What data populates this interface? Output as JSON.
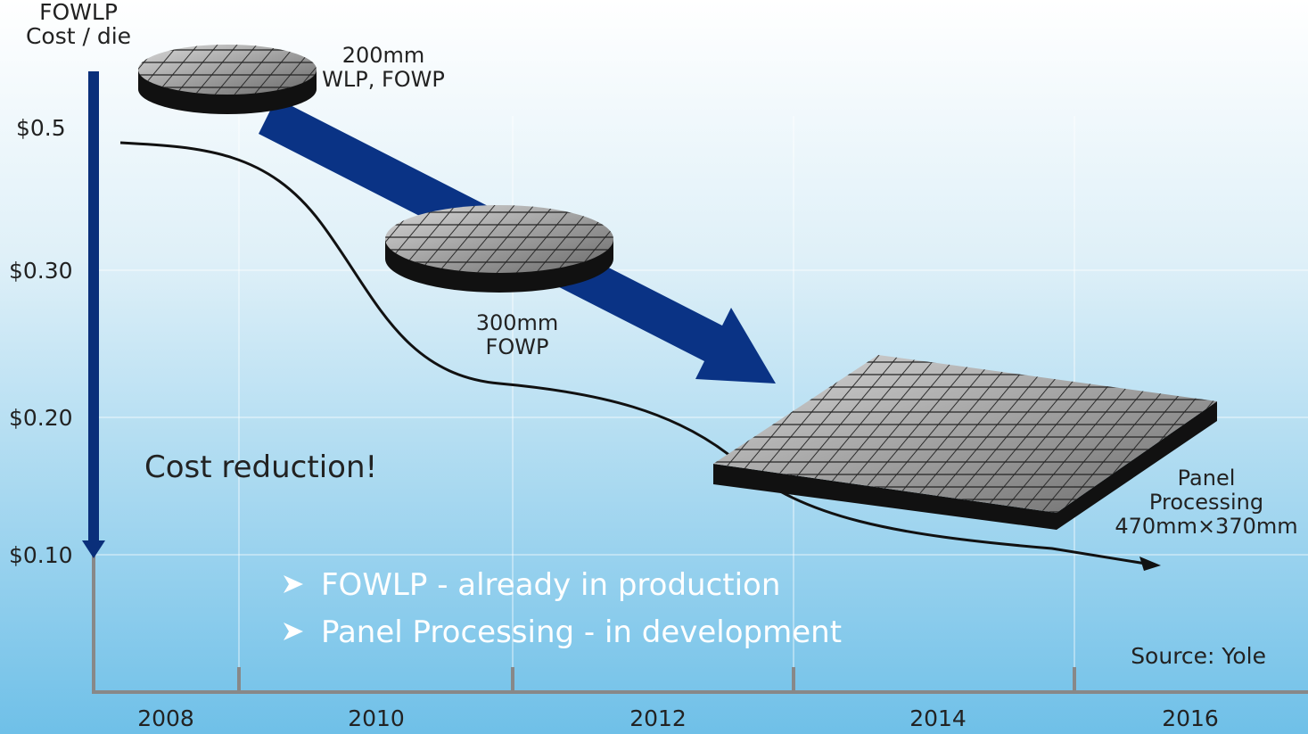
{
  "y_axis": {
    "title": [
      "FOWLP",
      "Cost / die"
    ],
    "labels": [
      "$0.5",
      "$0.30",
      "$0.20",
      "$0.10"
    ]
  },
  "x_axis": {
    "labels": [
      "2008",
      "2010",
      "2012",
      "2014",
      "2016"
    ]
  },
  "stages": [
    {
      "label": [
        "200mm",
        "WLP, FOWP"
      ]
    },
    {
      "label": [
        "300mm",
        "FOWP"
      ]
    },
    {
      "label": [
        "Panel",
        "Processing",
        "470mm×370mm"
      ]
    }
  ],
  "callout": "Cost reduction!",
  "bullets": [
    "FOWLP - already in production",
    "Panel Processing - in development"
  ],
  "source": "Source: Yole"
}
